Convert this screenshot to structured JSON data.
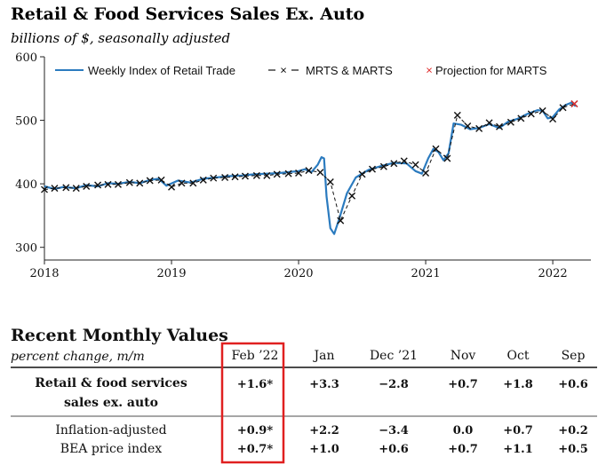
{
  "chart_data": {
    "type": "line",
    "title": "Retail & Food Services Sales Ex. Auto",
    "subtitle": "billions of $, seasonally adjusted",
    "ylim": [
      280,
      600
    ],
    "y_ticks": [
      300,
      400,
      500,
      600
    ],
    "xlim": [
      2018.0,
      2022.3
    ],
    "x_ticks": [
      {
        "value": 2018,
        "label": "2018"
      },
      {
        "value": 2019,
        "label": "2019"
      },
      {
        "value": 2020,
        "label": "2020"
      },
      {
        "value": 2021,
        "label": "2021"
      },
      {
        "value": 2022,
        "label": "2022"
      }
    ],
    "legend_position": "top",
    "series": [
      {
        "name": "Weekly Index of Retail Trade",
        "style": "solid",
        "color": "#2b7bbf",
        "points": [
          [
            2018.0,
            396
          ],
          [
            2018.08,
            392
          ],
          [
            2018.15,
            395
          ],
          [
            2018.25,
            393
          ],
          [
            2018.33,
            398
          ],
          [
            2018.42,
            396
          ],
          [
            2018.5,
            401
          ],
          [
            2018.58,
            400
          ],
          [
            2018.67,
            403
          ],
          [
            2018.75,
            401
          ],
          [
            2018.83,
            406
          ],
          [
            2018.9,
            408
          ],
          [
            2018.96,
            397
          ],
          [
            2019.05,
            405
          ],
          [
            2019.15,
            402
          ],
          [
            2019.25,
            408
          ],
          [
            2019.35,
            410
          ],
          [
            2019.45,
            412
          ],
          [
            2019.55,
            413
          ],
          [
            2019.65,
            415
          ],
          [
            2019.75,
            416
          ],
          [
            2019.85,
            417
          ],
          [
            2019.95,
            419
          ],
          [
            2020.0,
            420
          ],
          [
            2020.05,
            423
          ],
          [
            2020.1,
            418
          ],
          [
            2020.15,
            430
          ],
          [
            2020.18,
            442
          ],
          [
            2020.2,
            440
          ],
          [
            2020.22,
            380
          ],
          [
            2020.25,
            330
          ],
          [
            2020.28,
            321
          ],
          [
            2020.32,
            345
          ],
          [
            2020.38,
            385
          ],
          [
            2020.45,
            410
          ],
          [
            2020.55,
            422
          ],
          [
            2020.65,
            428
          ],
          [
            2020.75,
            433
          ],
          [
            2020.85,
            432
          ],
          [
            2020.92,
            420
          ],
          [
            2020.97,
            416
          ],
          [
            2021.02,
            440
          ],
          [
            2021.06,
            455
          ],
          [
            2021.1,
            450
          ],
          [
            2021.14,
            437
          ],
          [
            2021.18,
            448
          ],
          [
            2021.22,
            495
          ],
          [
            2021.28,
            493
          ],
          [
            2021.35,
            486
          ],
          [
            2021.42,
            488
          ],
          [
            2021.5,
            494
          ],
          [
            2021.58,
            488
          ],
          [
            2021.65,
            498
          ],
          [
            2021.72,
            502
          ],
          [
            2021.8,
            510
          ],
          [
            2021.88,
            516
          ],
          [
            2021.92,
            515
          ],
          [
            2021.96,
            503
          ],
          [
            2022.0,
            505
          ],
          [
            2022.05,
            517
          ],
          [
            2022.1,
            524
          ],
          [
            2022.15,
            528
          ],
          [
            2022.18,
            522
          ]
        ]
      },
      {
        "name": "MRTS & MARTS",
        "style": "dashed-x",
        "color": "#111111",
        "points": [
          [
            2018.0,
            391
          ],
          [
            2018.08,
            393
          ],
          [
            2018.17,
            394
          ],
          [
            2018.25,
            393
          ],
          [
            2018.33,
            396
          ],
          [
            2018.42,
            398
          ],
          [
            2018.5,
            399
          ],
          [
            2018.58,
            399
          ],
          [
            2018.67,
            402
          ],
          [
            2018.75,
            401
          ],
          [
            2018.83,
            405
          ],
          [
            2018.92,
            406
          ],
          [
            2019.0,
            395
          ],
          [
            2019.08,
            401
          ],
          [
            2019.17,
            401
          ],
          [
            2019.25,
            406
          ],
          [
            2019.33,
            409
          ],
          [
            2019.42,
            410
          ],
          [
            2019.5,
            411
          ],
          [
            2019.58,
            412
          ],
          [
            2019.67,
            413
          ],
          [
            2019.75,
            413
          ],
          [
            2019.83,
            415
          ],
          [
            2019.92,
            416
          ],
          [
            2020.0,
            417
          ],
          [
            2020.08,
            421
          ],
          [
            2020.17,
            418
          ],
          [
            2020.25,
            403
          ],
          [
            2020.33,
            342
          ],
          [
            2020.42,
            381
          ],
          [
            2020.5,
            415
          ],
          [
            2020.58,
            423
          ],
          [
            2020.67,
            427
          ],
          [
            2020.75,
            432
          ],
          [
            2020.83,
            436
          ],
          [
            2020.92,
            430
          ],
          [
            2021.0,
            417
          ],
          [
            2021.08,
            455
          ],
          [
            2021.17,
            440
          ],
          [
            2021.25,
            508
          ],
          [
            2021.33,
            491
          ],
          [
            2021.42,
            487
          ],
          [
            2021.5,
            496
          ],
          [
            2021.58,
            490
          ],
          [
            2021.67,
            497
          ],
          [
            2021.75,
            503
          ],
          [
            2021.83,
            510
          ],
          [
            2021.92,
            515
          ],
          [
            2022.0,
            502
          ],
          [
            2022.08,
            520
          ],
          [
            2022.17,
            526
          ]
        ]
      },
      {
        "name": "Projection for MARTS",
        "style": "marker-x",
        "color": "#e03030",
        "points": [
          [
            2022.17,
            526
          ]
        ]
      }
    ]
  },
  "table": {
    "title": "Recent Monthly Values",
    "subtitle": "percent change, m/m",
    "columns": [
      "Feb ’22",
      "Jan",
      "Dec ’21",
      "Nov",
      "Oct",
      "Sep"
    ],
    "highlight_column": 0,
    "highlight_color": "#e02020",
    "rows": [
      {
        "label_lines": [
          "Retail & food services",
          "sales ex. auto"
        ],
        "bold_label": true,
        "values": [
          [
            "+1.6*",
            "+3.3",
            "−2.8",
            "+0.7",
            "+1.8",
            "+0.6"
          ]
        ]
      },
      {
        "label_lines": [
          "Inflation-adjusted",
          "BEA price index"
        ],
        "bold_label": false,
        "values": [
          [
            "+0.9*",
            "+2.2",
            "−3.4",
            "0.0",
            "+0.7",
            "+0.2"
          ],
          [
            "+0.7*",
            "+1.0",
            "+0.6",
            "+0.7",
            "+1.1",
            "+0.5"
          ]
        ]
      }
    ]
  }
}
